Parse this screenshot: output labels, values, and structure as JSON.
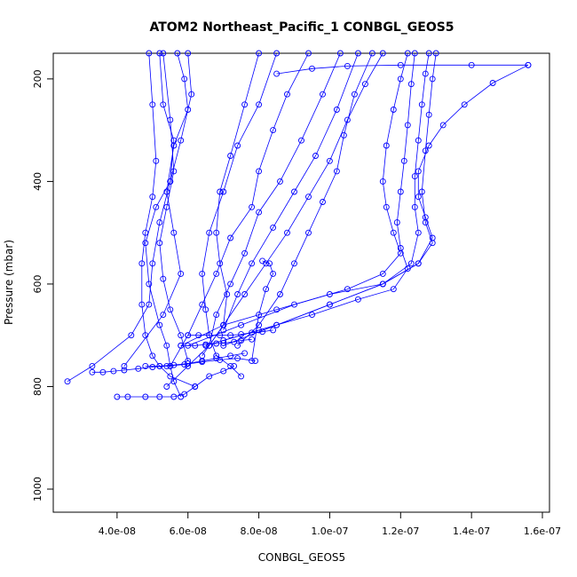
{
  "chart_data": {
    "type": "line",
    "title": "ATOM2 Northeast_Pacific_1 CONBGL_GEOS5",
    "xlabel": "CONBGL_GEOS5",
    "ylabel": "Pressure (mbar)",
    "xlim": [
      2.2e-08,
      1.62e-07
    ],
    "ylim": [
      1045,
      150
    ],
    "y_reversed": true,
    "x_ticks": [
      {
        "value": 4e-08,
        "label": "4.0e-08"
      },
      {
        "value": 6e-08,
        "label": "6.0e-08"
      },
      {
        "value": 8e-08,
        "label": "8.0e-08"
      },
      {
        "value": 1e-07,
        "label": "1.0e-07"
      },
      {
        "value": 1.2e-07,
        "label": "1.2e-07"
      },
      {
        "value": 1.4e-07,
        "label": "1.4e-07"
      },
      {
        "value": 1.6e-07,
        "label": "1.6e-07"
      }
    ],
    "y_ticks": [
      {
        "value": 200,
        "label": "200"
      },
      {
        "value": 400,
        "label": "400"
      },
      {
        "value": 600,
        "label": "600"
      },
      {
        "value": 800,
        "label": "800"
      },
      {
        "value": 1000,
        "label": "1000"
      }
    ],
    "series_color": "#0000ff",
    "marker": "open-circle",
    "grid": false,
    "series": [
      {
        "x": [
          5.2e-08,
          5.3e-08,
          5.6e-08,
          5.5e-08,
          5.1e-08,
          4.8e-08,
          4.9e-08,
          5.2e-08,
          5.4e-08,
          5.5e-08,
          5.6e-08,
          5.8e-08
        ],
        "y": [
          150,
          250,
          320,
          400,
          450,
          520,
          600,
          680,
          720,
          760,
          790,
          820
        ]
      },
      {
        "x": [
          4.9e-08,
          5e-08,
          5.1e-08,
          5e-08,
          4.8e-08,
          4.7e-08,
          4.7e-08,
          4.8e-08,
          5e-08,
          5.2e-08,
          5.5e-08,
          6.2e-08
        ],
        "y": [
          150,
          250,
          360,
          430,
          500,
          560,
          640,
          700,
          740,
          760,
          780,
          800
        ]
      },
      {
        "x": [
          5.3e-08,
          5.5e-08,
          5.6e-08,
          5.4e-08,
          5.2e-08,
          5.3e-08,
          5.5e-08,
          5.8e-08,
          6e-08
        ],
        "y": [
          150,
          280,
          380,
          450,
          520,
          590,
          650,
          700,
          750
        ]
      },
      {
        "x": [
          6e-08,
          6.1e-08,
          5.8e-08,
          5.5e-08,
          5.2e-08,
          5e-08,
          4.9e-08,
          4.4e-08,
          3.3e-08,
          2.6e-08
        ],
        "y": [
          150,
          230,
          320,
          400,
          480,
          560,
          640,
          700,
          760,
          790
        ]
      },
      {
        "x": [
          5.7e-08,
          5.9e-08,
          6e-08,
          5.6e-08,
          5.4e-08,
          5.6e-08,
          5.8e-08,
          5.3e-08,
          4.2e-08
        ],
        "y": [
          150,
          200,
          260,
          330,
          420,
          500,
          580,
          660,
          760
        ]
      },
      {
        "x": [
          8e-08,
          7.6e-08,
          7.2e-08,
          6.9e-08,
          6.8e-08,
          6.9e-08,
          7.1e-08,
          7e-08,
          6.6e-08,
          6e-08,
          5.4e-08
        ],
        "y": [
          150,
          250,
          350,
          420,
          500,
          560,
          620,
          680,
          720,
          760,
          800
        ]
      },
      {
        "x": [
          8.5e-08,
          8e-08,
          7.4e-08,
          7e-08,
          6.6e-08,
          6.4e-08,
          6.5e-08,
          6.6e-08,
          6.8e-08,
          7.2e-08,
          7.5e-08
        ],
        "y": [
          150,
          250,
          330,
          420,
          500,
          580,
          650,
          700,
          740,
          760,
          780
        ]
      },
      {
        "x": [
          9.4e-08,
          8.8e-08,
          8.4e-08,
          8e-08,
          7.8e-08,
          7.2e-08,
          6.8e-08,
          6.4e-08,
          6e-08,
          5.5e-08
        ],
        "y": [
          150,
          230,
          300,
          380,
          450,
          510,
          580,
          640,
          700,
          760
        ]
      },
      {
        "x": [
          1.03e-07,
          9.8e-08,
          9.2e-08,
          8.6e-08,
          8e-08,
          7.6e-08,
          7.2e-08,
          6.8e-08,
          6.6e-08
        ],
        "y": [
          150,
          230,
          320,
          400,
          460,
          540,
          600,
          660,
          720
        ]
      },
      {
        "x": [
          1.08e-07,
          1.02e-07,
          9.6e-08,
          9e-08,
          8.4e-08,
          7.8e-08,
          7.4e-08,
          7e-08
        ],
        "y": [
          150,
          260,
          350,
          420,
          490,
          560,
          620,
          690
        ]
      },
      {
        "x": [
          1.15e-07,
          1.1e-07,
          1.05e-07,
          1e-07,
          9.4e-08,
          8.8e-08,
          8.2e-08,
          7.6e-08,
          7e-08,
          6.4e-08
        ],
        "y": [
          150,
          210,
          280,
          360,
          430,
          500,
          560,
          620,
          680,
          740
        ]
      },
      {
        "x": [
          1.12e-07,
          1.07e-07,
          1.04e-07,
          1.02e-07,
          9.8e-08,
          9.4e-08,
          9e-08,
          8.6e-08,
          8e-08,
          7.4e-08
        ],
        "y": [
          150,
          230,
          310,
          380,
          440,
          500,
          560,
          620,
          680,
          720
        ]
      },
      {
        "x": [
          1.22e-07,
          1.2e-07,
          1.18e-07,
          1.16e-07,
          1.15e-07,
          1.16e-07,
          1.18e-07,
          1.2e-07,
          1.15e-07,
          1.05e-07,
          9e-08,
          7.5e-08,
          6e-08
        ],
        "y": [
          150,
          200,
          260,
          330,
          400,
          450,
          500,
          540,
          580,
          610,
          640,
          680,
          720
        ]
      },
      {
        "x": [
          1.24e-07,
          1.23e-07,
          1.22e-07,
          1.21e-07,
          1.2e-07,
          1.19e-07,
          1.2e-07,
          1.22e-07,
          1.18e-07,
          1.08e-07,
          9.5e-08,
          8e-08,
          6.5e-08
        ],
        "y": [
          150,
          210,
          290,
          360,
          420,
          480,
          530,
          570,
          610,
          630,
          660,
          690,
          720
        ]
      },
      {
        "x": [
          1.28e-07,
          1.27e-07,
          1.26e-07,
          1.25e-07,
          1.24e-07,
          1.24e-07,
          1.25e-07,
          1.23e-07,
          1.15e-07,
          1e-07,
          8.5e-08,
          7e-08,
          5.8e-08
        ],
        "y": [
          150,
          190,
          250,
          320,
          390,
          450,
          500,
          560,
          600,
          620,
          650,
          680,
          720
        ]
      },
      {
        "x": [
          1.3e-07,
          1.29e-07,
          1.28e-07,
          1.27e-07,
          1.26e-07,
          1.27e-07,
          1.29e-07,
          1.25e-07,
          1.15e-07,
          1e-07,
          8.5e-08,
          7e-08
        ],
        "y": [
          150,
          200,
          270,
          340,
          420,
          480,
          520,
          560,
          600,
          640,
          680,
          720
        ]
      },
      {
        "x": [
          1.56e-07,
          1.46e-07,
          1.38e-07,
          1.32e-07,
          1.28e-07,
          1.25e-07,
          1.25e-07,
          1.27e-07,
          1.29e-07,
          1.25e-07,
          1.15e-07,
          1e-07,
          8.5e-08,
          7e-08
        ],
        "y": [
          173,
          208,
          250,
          290,
          330,
          380,
          430,
          470,
          510,
          560,
          600,
          640,
          680,
          710
        ]
      },
      {
        "x": [
          1.56e-07,
          1.4e-07,
          1.2e-07,
          1.05e-07,
          9.5e-08,
          8.5e-08
        ],
        "y": [
          173,
          173,
          173,
          175,
          180,
          190
        ]
      },
      {
        "x": [
          4e-08,
          4.3e-08,
          4.8e-08,
          5.2e-08,
          5.6e-08,
          5.9e-08,
          6.2e-08,
          6.6e-08,
          7e-08,
          7.3e-08
        ],
        "y": [
          820,
          820,
          820,
          820,
          820,
          815,
          800,
          780,
          770,
          760
        ]
      },
      {
        "x": [
          3.3e-08,
          3.6e-08,
          3.9e-08,
          4.2e-08,
          4.6e-08,
          5e-08,
          5.4e-08,
          5.9e-08,
          6.4e-08,
          6.9e-08,
          7.4e-08,
          7.9e-08
        ],
        "y": [
          772,
          772,
          770,
          768,
          765,
          762,
          760,
          757,
          752,
          748,
          745,
          750
        ]
      },
      {
        "x": [
          4.8e-08,
          5.2e-08,
          5.6e-08,
          6e-08,
          6.4e-08,
          6.8e-08,
          7.2e-08,
          7.6e-08
        ],
        "y": [
          760,
          760,
          758,
          755,
          750,
          745,
          740,
          735
        ]
      },
      {
        "x": [
          5.8e-08,
          6.2e-08,
          6.5e-08,
          6.8e-08,
          7e-08,
          7.3e-08,
          7.5e-08,
          7.8e-08
        ],
        "y": [
          720,
          720,
          718,
          716,
          715,
          713,
          710,
          708
        ]
      },
      {
        "x": [
          6e-08,
          6.3e-08,
          6.6e-08,
          6.9e-08,
          7.2e-08,
          7.5e-08,
          7.8e-08,
          8.1e-08,
          8.4e-08
        ],
        "y": [
          700,
          700,
          700,
          700,
          700,
          698,
          695,
          693,
          690
        ]
      },
      {
        "x": [
          8.1e-08,
          8.3e-08,
          8.4e-08,
          8.2e-08,
          8e-08,
          7.8e-08
        ],
        "y": [
          555,
          560,
          580,
          610,
          660,
          750
        ]
      }
    ]
  }
}
